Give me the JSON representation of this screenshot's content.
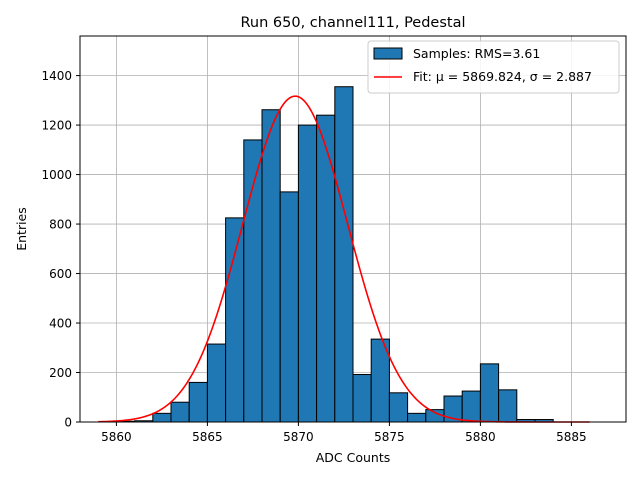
{
  "chart_data": {
    "type": "bar",
    "title": "Run 650, channel111, Pedestal",
    "xlabel": "ADC Counts",
    "ylabel": "Entries",
    "xlim": [
      5858.0,
      5888.0
    ],
    "ylim": [
      0,
      1560
    ],
    "xticks": [
      5860,
      5865,
      5870,
      5875,
      5880,
      5885
    ],
    "yticks": [
      0,
      200,
      400,
      600,
      800,
      1000,
      1200,
      1400
    ],
    "grid": true,
    "legend_position": "top-right",
    "histogram": {
      "name": "Samples: RMS=3.61",
      "color": "#1f77b4",
      "bin_edges": [
        5860,
        5861,
        5862,
        5863,
        5864,
        5865,
        5866,
        5867,
        5868,
        5869,
        5870,
        5871,
        5872,
        5873,
        5874,
        5875,
        5876,
        5877,
        5878,
        5879,
        5880,
        5881,
        5882,
        5883,
        5884
      ],
      "counts": [
        3,
        5,
        35,
        80,
        160,
        315,
        825,
        1140,
        1262,
        930,
        1200,
        1240,
        1355,
        192,
        335,
        118,
        35,
        50,
        105,
        125,
        235,
        130,
        10,
        10
      ]
    },
    "fit": {
      "name": "Fit: μ = 5869.824, σ = 2.887",
      "type": "gaussian",
      "color": "#ff0000",
      "mu": 5869.824,
      "sigma": 2.887,
      "amplitude": 1317,
      "x_range": [
        5859,
        5886
      ]
    }
  }
}
